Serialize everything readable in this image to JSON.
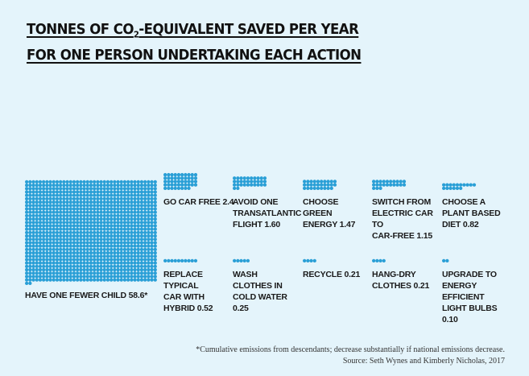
{
  "title_line1_pre": "TONNES OF CO",
  "title_line1_sub": "2",
  "title_line1_post": "-EQUIVALENT SAVED PER YEAR",
  "title_line2": "FOR ONE PERSON UNDERTAKING EACH ACTION",
  "footnote": "*Cumulative emissions from descendants; decrease substantially if national emissions decrease.",
  "source": "Source: Seth Wynes and Kimberly Nicholas, 2017",
  "colors": {
    "dot": "#2a9fd6",
    "background": "#e4f4fb",
    "text": "#1a1a1a"
  },
  "chart_data": {
    "type": "unit-dot",
    "unit": "tonnes CO2-equivalent per year",
    "title": "TONNES OF CO2-EQUIVALENT SAVED PER YEAR FOR ONE PERSON UNDERTAKING EACH ACTION",
    "items": [
      {
        "label": "HAVE ONE FEWER CHILD 58.6*",
        "value": 58.6
      },
      {
        "label": "GO CAR FREE 2.4",
        "value": 2.4
      },
      {
        "label": "AVOID ONE TRANSATLANTIC FLIGHT 1.60",
        "value": 1.6
      },
      {
        "label": "CHOOSE GREEN ENERGY 1.47",
        "value": 1.47
      },
      {
        "label": "SWITCH FROM ELECTRIC CAR TO CAR-FREE 1.15",
        "value": 1.15
      },
      {
        "label": "CHOOSE A PLANT BASED DIET 0.82",
        "value": 0.82
      },
      {
        "label": "REPLACE TYPICAL CAR WITH HYBRID 0.52",
        "value": 0.52
      },
      {
        "label": "WASH CLOTHES IN COLD WATER 0.25",
        "value": 0.25
      },
      {
        "label": "RECYCLE 0.21",
        "value": 0.21
      },
      {
        "label": "HANG-DRY CLOTHES 0.21",
        "value": 0.21
      },
      {
        "label": "UPGRADE TO ENERGY EFFICIENT LIGHT BULBS 0.10",
        "value": 0.1
      }
    ]
  }
}
